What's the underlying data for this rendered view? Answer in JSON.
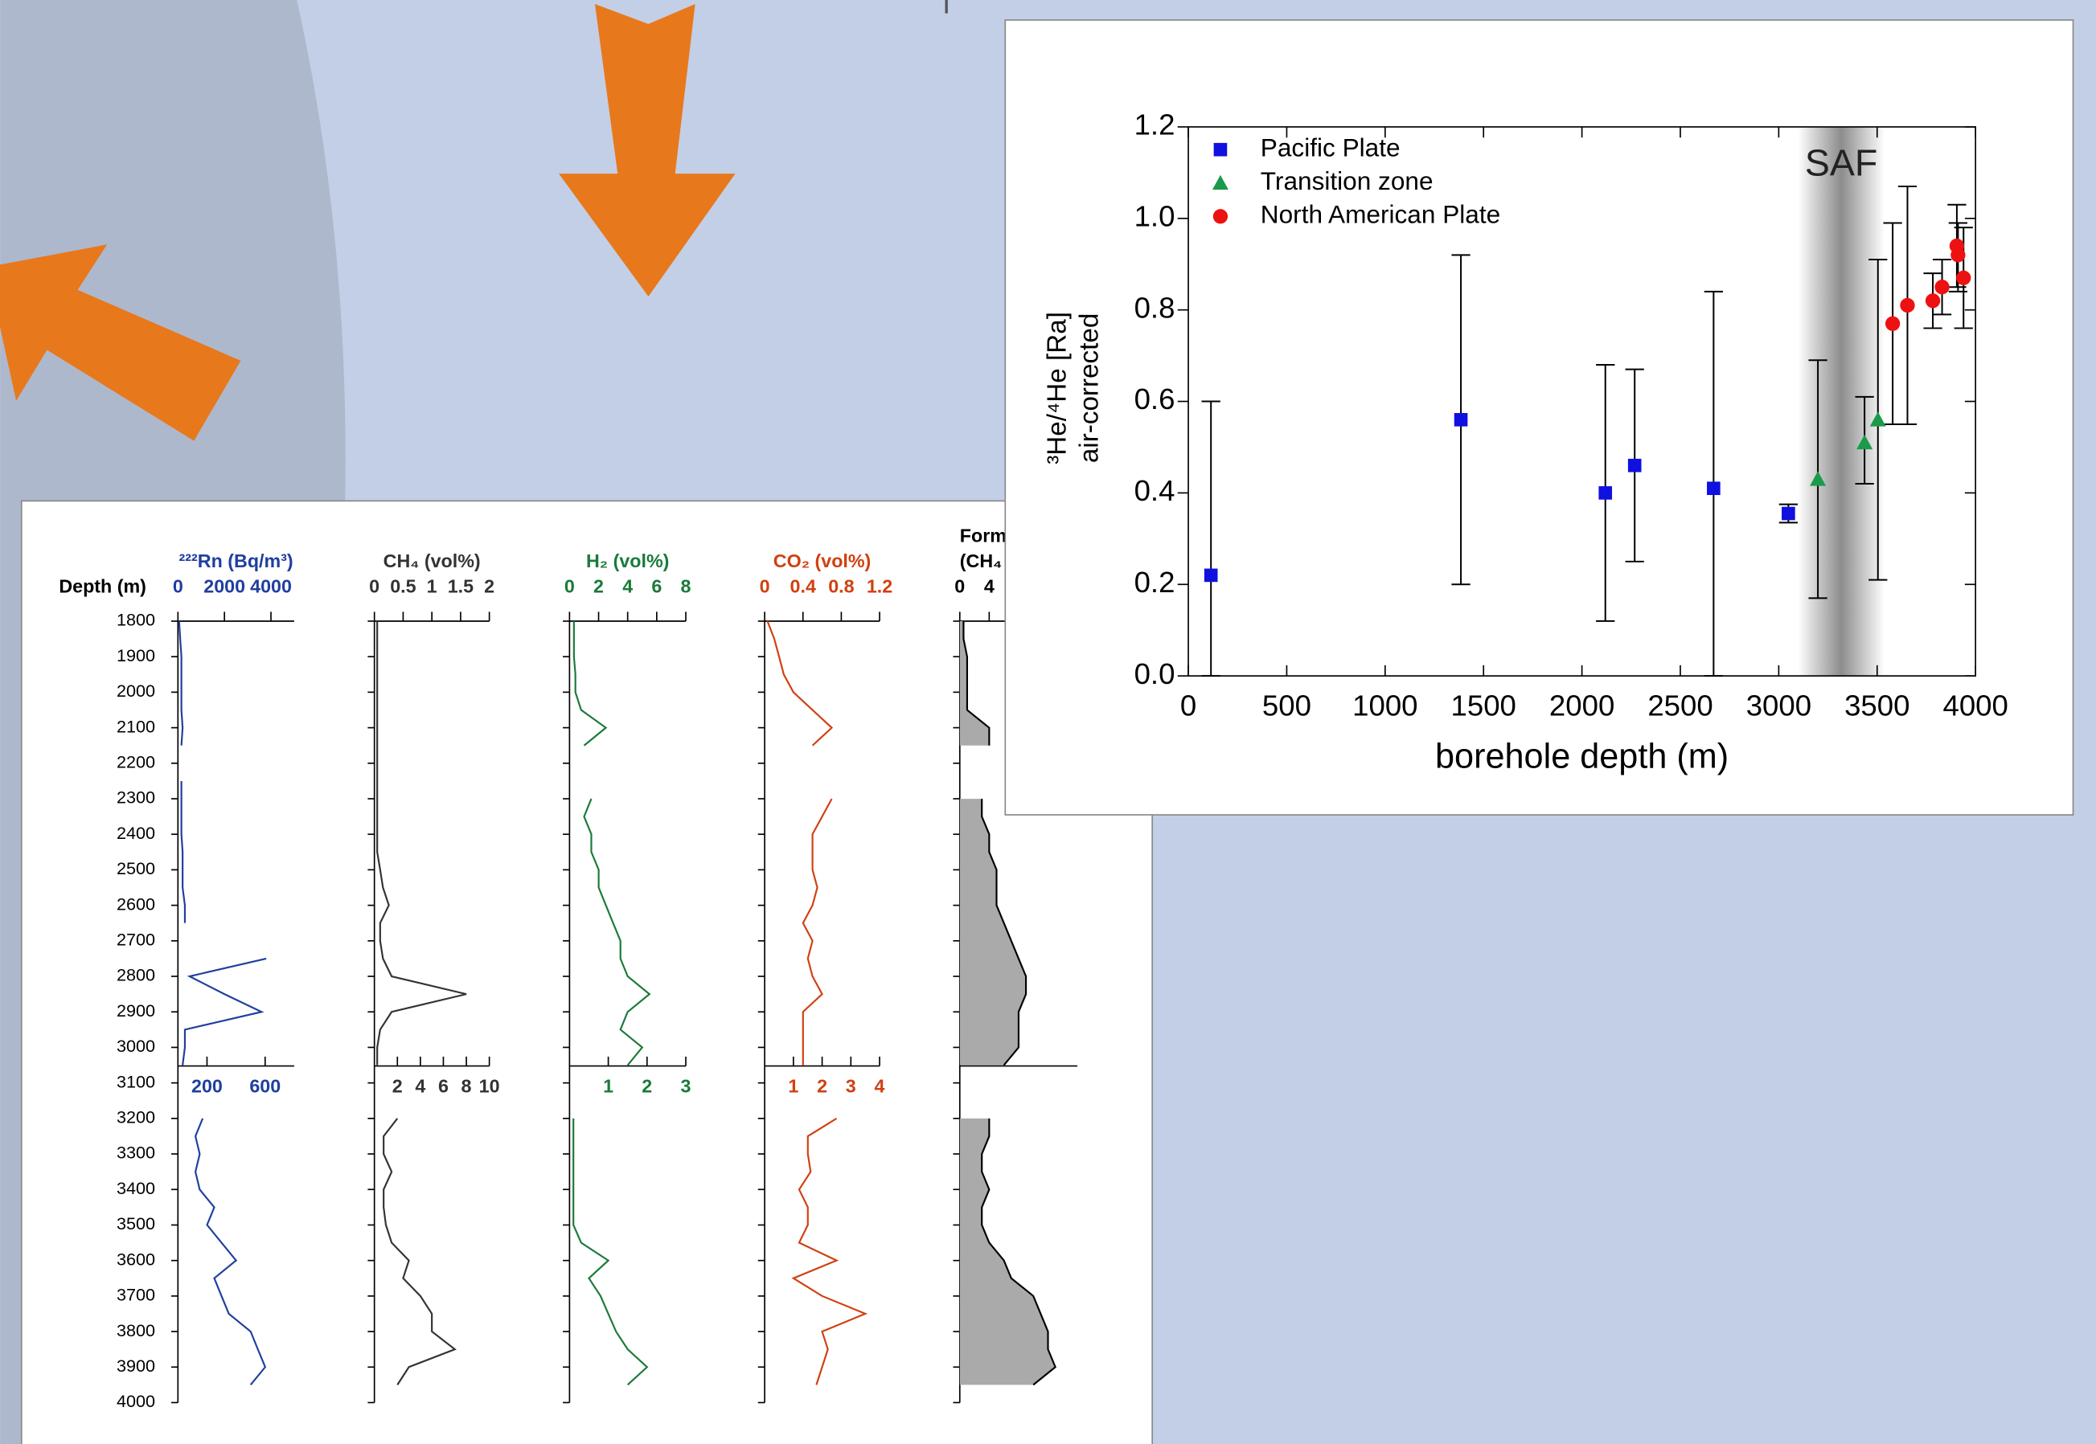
{
  "chart_data": [
    {
      "type": "logs",
      "depth_label": "Depth (m)",
      "depth_lim": [
        1800,
        4000
      ],
      "depth_ticks": [
        1800,
        1900,
        2000,
        2100,
        2200,
        2300,
        2400,
        2500,
        2600,
        2700,
        2800,
        2900,
        3000,
        3100,
        3200,
        3300,
        3400,
        3500,
        3600,
        3700,
        3800,
        3900,
        4000
      ],
      "upper_depths": [
        1800,
        1850,
        1900,
        1950,
        2000,
        2050,
        2100,
        2150,
        2200,
        2250,
        2300,
        2350,
        2400,
        2450,
        2500,
        2550,
        2600,
        2650,
        2700,
        2750,
        2800,
        2850,
        2900,
        2950,
        3000,
        3050
      ],
      "lower_depths": [
        3200,
        3250,
        3300,
        3350,
        3400,
        3450,
        3500,
        3550,
        3600,
        3650,
        3700,
        3750,
        3800,
        3850,
        3900,
        3950
      ],
      "tracks": [
        {
          "name": "²²²Rn (Bq/m³)",
          "color": "#1f3f9f",
          "fill": false,
          "upper": {
            "xlim": [
              0,
              5000
            ],
            "xticks": [
              0,
              2000,
              4000
            ],
            "values": [
              50,
              100,
              150,
              150,
              150,
              150,
              200,
              150,
              null,
              150,
              150,
              150,
              150,
              200,
              200,
              200,
              300,
              300,
              null,
              3800,
              500,
              2000,
              3600,
              300,
              300,
              200
            ]
          },
          "lower": {
            "xlim": [
              0,
              800
            ],
            "xticks": [
              200,
              600
            ],
            "values": [
              170,
              120,
              150,
              120,
              150,
              250,
              200,
              300,
              400,
              250,
              300,
              350,
              500,
              550,
              600,
              500
            ]
          }
        },
        {
          "name": "CH₄ (vol%)",
          "color": "#333333",
          "fill": false,
          "upper": {
            "xlim": [
              0,
              2
            ],
            "xticks": [
              0,
              0.5,
              1,
              1.5,
              2
            ],
            "values": [
              0.05,
              0.05,
              0.05,
              0.05,
              0.05,
              0.05,
              0.05,
              0.05,
              0.05,
              0.05,
              0.05,
              0.05,
              0.05,
              0.05,
              0.1,
              0.15,
              0.25,
              0.1,
              0.1,
              0.15,
              0.3,
              1.6,
              0.3,
              0.1,
              0.05,
              0.05
            ]
          },
          "lower": {
            "xlim": [
              0,
              10
            ],
            "xticks": [
              2,
              4,
              6,
              8,
              10
            ],
            "values": [
              2,
              0.8,
              0.8,
              1.5,
              0.8,
              0.8,
              1,
              1.5,
              3,
              2.5,
              4,
              5,
              5,
              7,
              3,
              2
            ]
          }
        },
        {
          "name": "H₂ (vol%)",
          "color": "#1a7a3a",
          "fill": false,
          "upper": {
            "xlim": [
              0,
              8
            ],
            "xticks": [
              0,
              2,
              4,
              6,
              8
            ],
            "values": [
              0.3,
              0.3,
              0.3,
              0.4,
              0.4,
              0.8,
              2.5,
              1,
              null,
              null,
              1.5,
              1,
              1.5,
              1.5,
              2,
              2,
              2.5,
              3,
              3.5,
              3.5,
              4,
              5.5,
              4,
              3.5,
              5,
              4
            ]
          },
          "lower": {
            "xlim": [
              0,
              3
            ],
            "xticks": [
              1,
              2,
              3
            ],
            "values": [
              0.1,
              0.1,
              0.1,
              0.1,
              0.1,
              0.1,
              0.1,
              0.3,
              1,
              0.5,
              0.8,
              1,
              1.2,
              1.5,
              2,
              1.5
            ]
          }
        },
        {
          "name": "CO₂ (vol%)",
          "color": "#d04010",
          "fill": false,
          "upper": {
            "xlim": [
              0,
              1.2
            ],
            "xticks": [
              0,
              0.4,
              0.8,
              1.2
            ],
            "values": [
              0.03,
              0.1,
              0.15,
              0.2,
              0.3,
              0.5,
              0.7,
              0.5,
              null,
              null,
              0.7,
              0.6,
              0.5,
              0.5,
              0.5,
              0.55,
              0.5,
              0.4,
              0.5,
              0.45,
              0.5,
              0.6,
              0.4,
              0.4,
              0.4,
              0.4
            ]
          },
          "lower": {
            "xlim": [
              0,
              4
            ],
            "xticks": [
              1,
              2,
              3,
              4
            ],
            "values": [
              2.5,
              1.5,
              1.5,
              1.6,
              1.2,
              1.5,
              1.5,
              1.2,
              2.5,
              1,
              2,
              3.5,
              2,
              2.2,
              2,
              1.8
            ]
          }
        },
        {
          "name": "Form",
          "name2": "(CH₄",
          "color": "#000000",
          "fill": true,
          "upper": {
            "xlim": [
              0,
              16
            ],
            "xticks": [
              0,
              4
            ],
            "values": [
              0.5,
              0.5,
              1,
              1,
              1,
              1,
              4,
              4,
              null,
              null,
              3,
              3,
              4,
              4,
              5,
              5,
              5,
              6,
              7,
              8,
              9,
              9,
              8,
              8,
              8,
              6
            ]
          },
          "lower": {
            "xlim": [
              0,
              16
            ],
            "xticks": [],
            "values": [
              4,
              4,
              3,
              3,
              4,
              3,
              3,
              4,
              6,
              7,
              10,
              11,
              12,
              12,
              13,
              10
            ]
          }
        }
      ]
    },
    {
      "type": "scatter",
      "xlabel": "borehole depth (m)",
      "ylabel": [
        "³He/⁴He [Ra]",
        "air-corrected"
      ],
      "xlim": [
        0,
        4000
      ],
      "xticks": [
        0,
        500,
        1000,
        1500,
        2000,
        2500,
        3000,
        3500,
        4000
      ],
      "ylim": [
        0,
        1.2
      ],
      "yticks": [
        {
          "value": 0,
          "label": "0.0"
        },
        0.2,
        0.4,
        0.6,
        0.8,
        {
          "value": 1,
          "label": "1.0"
        },
        1.2
      ],
      "legend": "upper left",
      "band": {
        "label": "SAF",
        "x": [
          3097,
          3538
        ]
      },
      "series": [
        {
          "name": "Pacific Plate",
          "color": "#1010e0",
          "marker": "square",
          "x": [
            115,
            1385,
            2119,
            2268,
            2669,
            3049
          ],
          "y": [
            0.22,
            0.56,
            0.4,
            0.46,
            0.41,
            0.355
          ],
          "lower": [
            0,
            0.2,
            0.12,
            0.25,
            0,
            0.335
          ],
          "upper": [
            0.6,
            0.92,
            0.68,
            0.67,
            0.84,
            0.375
          ]
        },
        {
          "name": "Transition zone",
          "color": "#1a9a4a",
          "marker": "triangle",
          "x": [
            3199,
            3436,
            3504
          ],
          "y": [
            0.43,
            0.51,
            0.56
          ],
          "lower": [
            0.17,
            0.42,
            0.21
          ],
          "upper": [
            0.69,
            0.61,
            0.91
          ]
        },
        {
          "name": "North American Plate",
          "color": "#ee1111",
          "marker": "circle",
          "x": [
            3579,
            3654,
            3783,
            3830,
            3905,
            3911,
            3939
          ],
          "y": [
            0.77,
            0.81,
            0.82,
            0.85,
            0.94,
            0.92,
            0.87
          ],
          "lower": [
            0.55,
            0.55,
            0.76,
            0.79,
            0.85,
            0.84,
            0.76
          ],
          "upper": [
            0.99,
            1.07,
            0.88,
            0.91,
            1.03,
            0.99,
            0.98
          ]
        }
      ]
    }
  ]
}
